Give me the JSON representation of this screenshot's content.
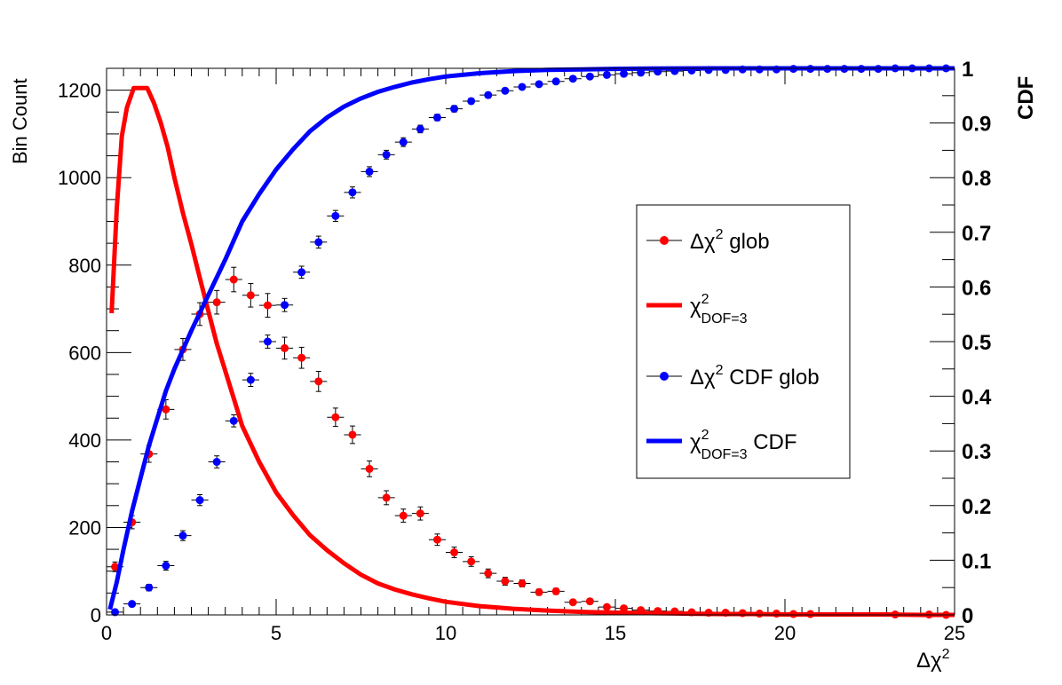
{
  "chart_data": {
    "type": "scatter",
    "title": "",
    "xlabel": "Δχ",
    "xlabel_sup": "2",
    "ylabel": "Bin Count",
    "y2label": "CDF",
    "xlim": [
      0,
      25
    ],
    "ylim": [
      0,
      1250
    ],
    "y2lim": [
      0,
      1
    ],
    "grid": false,
    "legend_position": "right-center",
    "x_ticks": [
      "0",
      "5",
      "10",
      "15",
      "20",
      "25"
    ],
    "y_ticks": [
      "0",
      "200",
      "400",
      "600",
      "800",
      "1000",
      "1200"
    ],
    "y2_ticks": [
      "0",
      "0.1",
      "0.2",
      "0.3",
      "0.4",
      "0.5",
      "0.6",
      "0.7",
      "0.8",
      "0.9",
      "1"
    ],
    "colors": {
      "red": "#ff0000",
      "blue": "#0000ff",
      "axis": "#000000"
    },
    "legend": [
      {
        "series": "glob",
        "text": "Δχ",
        "sup": "2",
        "sub": "",
        "suffix": " glob"
      },
      {
        "series": "pdf",
        "text": "χ",
        "sup": "2",
        "sub": "DOF=3",
        "suffix": ""
      },
      {
        "series": "cdfglob",
        "text": "Δχ",
        "sup": "2",
        "sub": "",
        "suffix": " CDF glob"
      },
      {
        "series": "cdf",
        "text": "χ",
        "sup": "2",
        "sub": "DOF=3",
        "suffix": " CDF"
      }
    ],
    "series": [
      {
        "name": "Δχ2 glob",
        "key": "glob",
        "axis": "left",
        "style": "points",
        "color": "#ff0000",
        "x_halfwidth": 0.25,
        "x": [
          0.25,
          0.75,
          1.25,
          1.75,
          2.25,
          2.75,
          3.25,
          3.75,
          4.25,
          4.75,
          5.25,
          5.75,
          6.25,
          6.75,
          7.25,
          7.75,
          8.25,
          8.75,
          9.25,
          9.75,
          10.25,
          10.75,
          11.25,
          11.75,
          12.25,
          12.75,
          13.25,
          13.75,
          14.25,
          14.75,
          15.25,
          15.75,
          16.25,
          16.75,
          17.25,
          17.75,
          18.25,
          18.75,
          19.25,
          19.75,
          20.25,
          20.75,
          23.25,
          24.25,
          24.75
        ],
        "y": [
          110,
          212,
          368,
          470,
          607,
          688,
          715,
          767,
          731,
          708,
          610,
          588,
          534,
          452,
          412,
          334,
          268,
          227,
          232,
          172,
          143,
          122,
          95,
          77,
          72,
          52,
          54,
          29,
          31,
          18,
          15,
          11,
          9,
          8,
          6,
          5,
          5,
          4,
          3,
          3,
          2,
          2,
          1,
          1,
          0
        ],
        "err": [
          11,
          15,
          19,
          22,
          25,
          26,
          27,
          28,
          27,
          27,
          25,
          24,
          23,
          21,
          20,
          18,
          16,
          15,
          15,
          13,
          12,
          11,
          10,
          9,
          8,
          7,
          7,
          5,
          6,
          4,
          4,
          3,
          3,
          3,
          2,
          2,
          2,
          2,
          2,
          2,
          1,
          1,
          1,
          1,
          1
        ]
      },
      {
        "name": "Δχ2 CDF glob",
        "key": "cdfglob",
        "axis": "right",
        "style": "points",
        "color": "#0000ff",
        "x_halfwidth": 0.25,
        "x": [
          0.25,
          0.75,
          1.25,
          1.75,
          2.25,
          2.75,
          3.25,
          3.75,
          4.25,
          4.75,
          5.25,
          5.75,
          6.25,
          6.75,
          7.25,
          7.75,
          8.25,
          8.75,
          9.25,
          9.75,
          10.25,
          10.75,
          11.25,
          11.75,
          12.25,
          12.75,
          13.25,
          13.75,
          14.25,
          14.75,
          15.25,
          15.75,
          16.25,
          16.75,
          17.25,
          17.75,
          18.25,
          18.75,
          19.25,
          19.75,
          20.25,
          20.75,
          21.25,
          21.75,
          22.25,
          22.75,
          23.25,
          23.75,
          24.25,
          24.75
        ],
        "y": [
          0.005,
          0.02,
          0.05,
          0.09,
          0.145,
          0.21,
          0.28,
          0.355,
          0.43,
          0.5,
          0.567,
          0.627,
          0.682,
          0.73,
          0.773,
          0.811,
          0.842,
          0.865,
          0.889,
          0.91,
          0.926,
          0.94,
          0.951,
          0.959,
          0.966,
          0.971,
          0.976,
          0.981,
          0.985,
          0.988,
          0.99,
          0.992,
          0.994,
          0.995,
          0.996,
          0.997,
          0.997,
          0.998,
          0.998,
          0.998,
          0.999,
          0.999,
          0.999,
          0.999,
          0.999,
          0.999,
          1.0,
          1.0,
          1.0,
          1.0
        ],
        "err": [
          0.002,
          0.004,
          0.006,
          0.008,
          0.009,
          0.01,
          0.011,
          0.011,
          0.012,
          0.012,
          0.012,
          0.011,
          0.011,
          0.01,
          0.01,
          0.009,
          0.008,
          0.008,
          0.007,
          0.006,
          0.006,
          0.005,
          0.005,
          0.004,
          0.004,
          0.004,
          0.003,
          0.003,
          0.003,
          0.002,
          0.002,
          0.002,
          0.002,
          0.001,
          0.001,
          0.001,
          0.001,
          0.001,
          0.001,
          0.001,
          0.001,
          0.001,
          0.001,
          0.001,
          0.001,
          0.001,
          0.0,
          0.0,
          0.0,
          0.0
        ]
      },
      {
        "name": "χ2 DOF=3",
        "key": "pdf",
        "axis": "left",
        "style": "line",
        "color": "#ff0000",
        "x": [
          0.15,
          0.3,
          0.45,
          0.6,
          0.8,
          1.0,
          1.2,
          1.4,
          1.6,
          1.8,
          2.0,
          2.25,
          2.5,
          2.75,
          3.0,
          3.25,
          3.5,
          3.75,
          4.0,
          4.5,
          5.0,
          5.5,
          6.0,
          6.5,
          7.0,
          7.5,
          8.0,
          8.5,
          9.0,
          9.5,
          10.0,
          11.0,
          12.0,
          13.0,
          14.0,
          15.0,
          16.0,
          17.0,
          18.0,
          19.0,
          20.0,
          21.0,
          22.0,
          23.0,
          24.0,
          25.0
        ],
        "y": [
          690,
          930,
          1095,
          1160,
          1205,
          1205,
          1205,
          1170,
          1125,
          1070,
          1000,
          920,
          848,
          770,
          695,
          620,
          558,
          495,
          432,
          350,
          280,
          228,
          182,
          148,
          118,
          92,
          72,
          58,
          47,
          38,
          30,
          20,
          14,
          10,
          7,
          5,
          4,
          3,
          2,
          2,
          1,
          1,
          1,
          1,
          0,
          0
        ]
      },
      {
        "name": "χ2 DOF=3 CDF",
        "key": "cdf",
        "axis": "right",
        "style": "line",
        "color": "#0000ff",
        "x": [
          0.1,
          0.3,
          0.5,
          0.75,
          1.0,
          1.25,
          1.5,
          1.75,
          2.0,
          2.5,
          3.0,
          3.5,
          4.0,
          4.5,
          5.0,
          5.5,
          6.0,
          6.5,
          7.0,
          7.5,
          8.0,
          8.5,
          9.0,
          9.5,
          10.0,
          11.0,
          12.0,
          13.0,
          14.0,
          15.0,
          16.0,
          18.0,
          20.0,
          22.0,
          25.0
        ],
        "y": [
          0.01,
          0.06,
          0.12,
          0.19,
          0.25,
          0.31,
          0.36,
          0.41,
          0.45,
          0.52,
          0.585,
          0.65,
          0.72,
          0.77,
          0.815,
          0.852,
          0.885,
          0.91,
          0.93,
          0.945,
          0.957,
          0.966,
          0.974,
          0.98,
          0.985,
          0.991,
          0.995,
          0.997,
          0.998,
          0.999,
          0.9995,
          1.0,
          1.0,
          1.0,
          1.0
        ]
      }
    ]
  }
}
